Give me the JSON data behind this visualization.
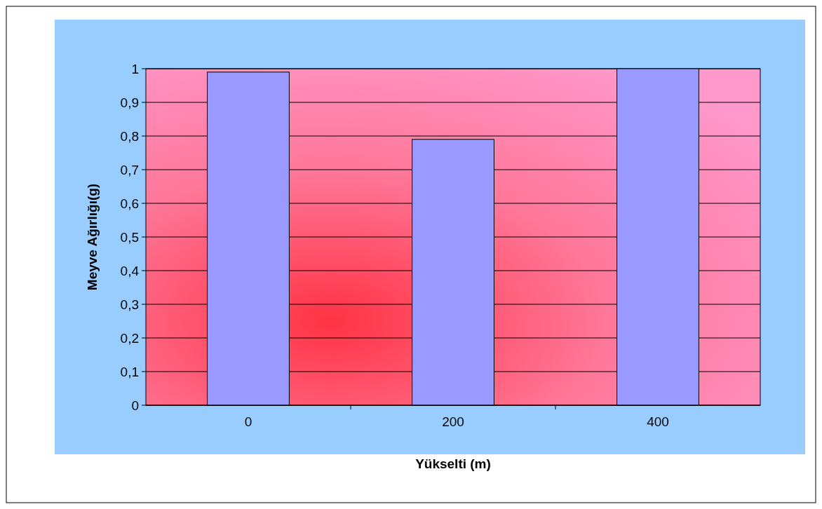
{
  "chart_data": {
    "type": "bar",
    "xlabel": "Yükselti  (m)",
    "ylabel": "Meyve Ağırlığı(g)",
    "categories": [
      "0",
      "200",
      "400"
    ],
    "series": [
      {
        "color": "#9999ff",
        "values": [
          0.99,
          0.79,
          1.0
        ]
      }
    ],
    "ylim": [
      0,
      1
    ],
    "yticks": [
      0,
      {
        "value": 0.1,
        "label": "0,1"
      },
      {
        "value": 0.2,
        "label": "0,2"
      },
      {
        "value": 0.3,
        "label": "0,3"
      },
      {
        "value": 0.4,
        "label": "0,4"
      },
      {
        "value": 0.5,
        "label": "0,5"
      },
      {
        "value": 0.6,
        "label": "0,6"
      },
      {
        "value": 0.7,
        "label": "0,7"
      },
      {
        "value": 0.8,
        "label": "0,8"
      },
      {
        "value": 0.9,
        "label": "0,9"
      },
      1
    ],
    "grid": "y"
  }
}
